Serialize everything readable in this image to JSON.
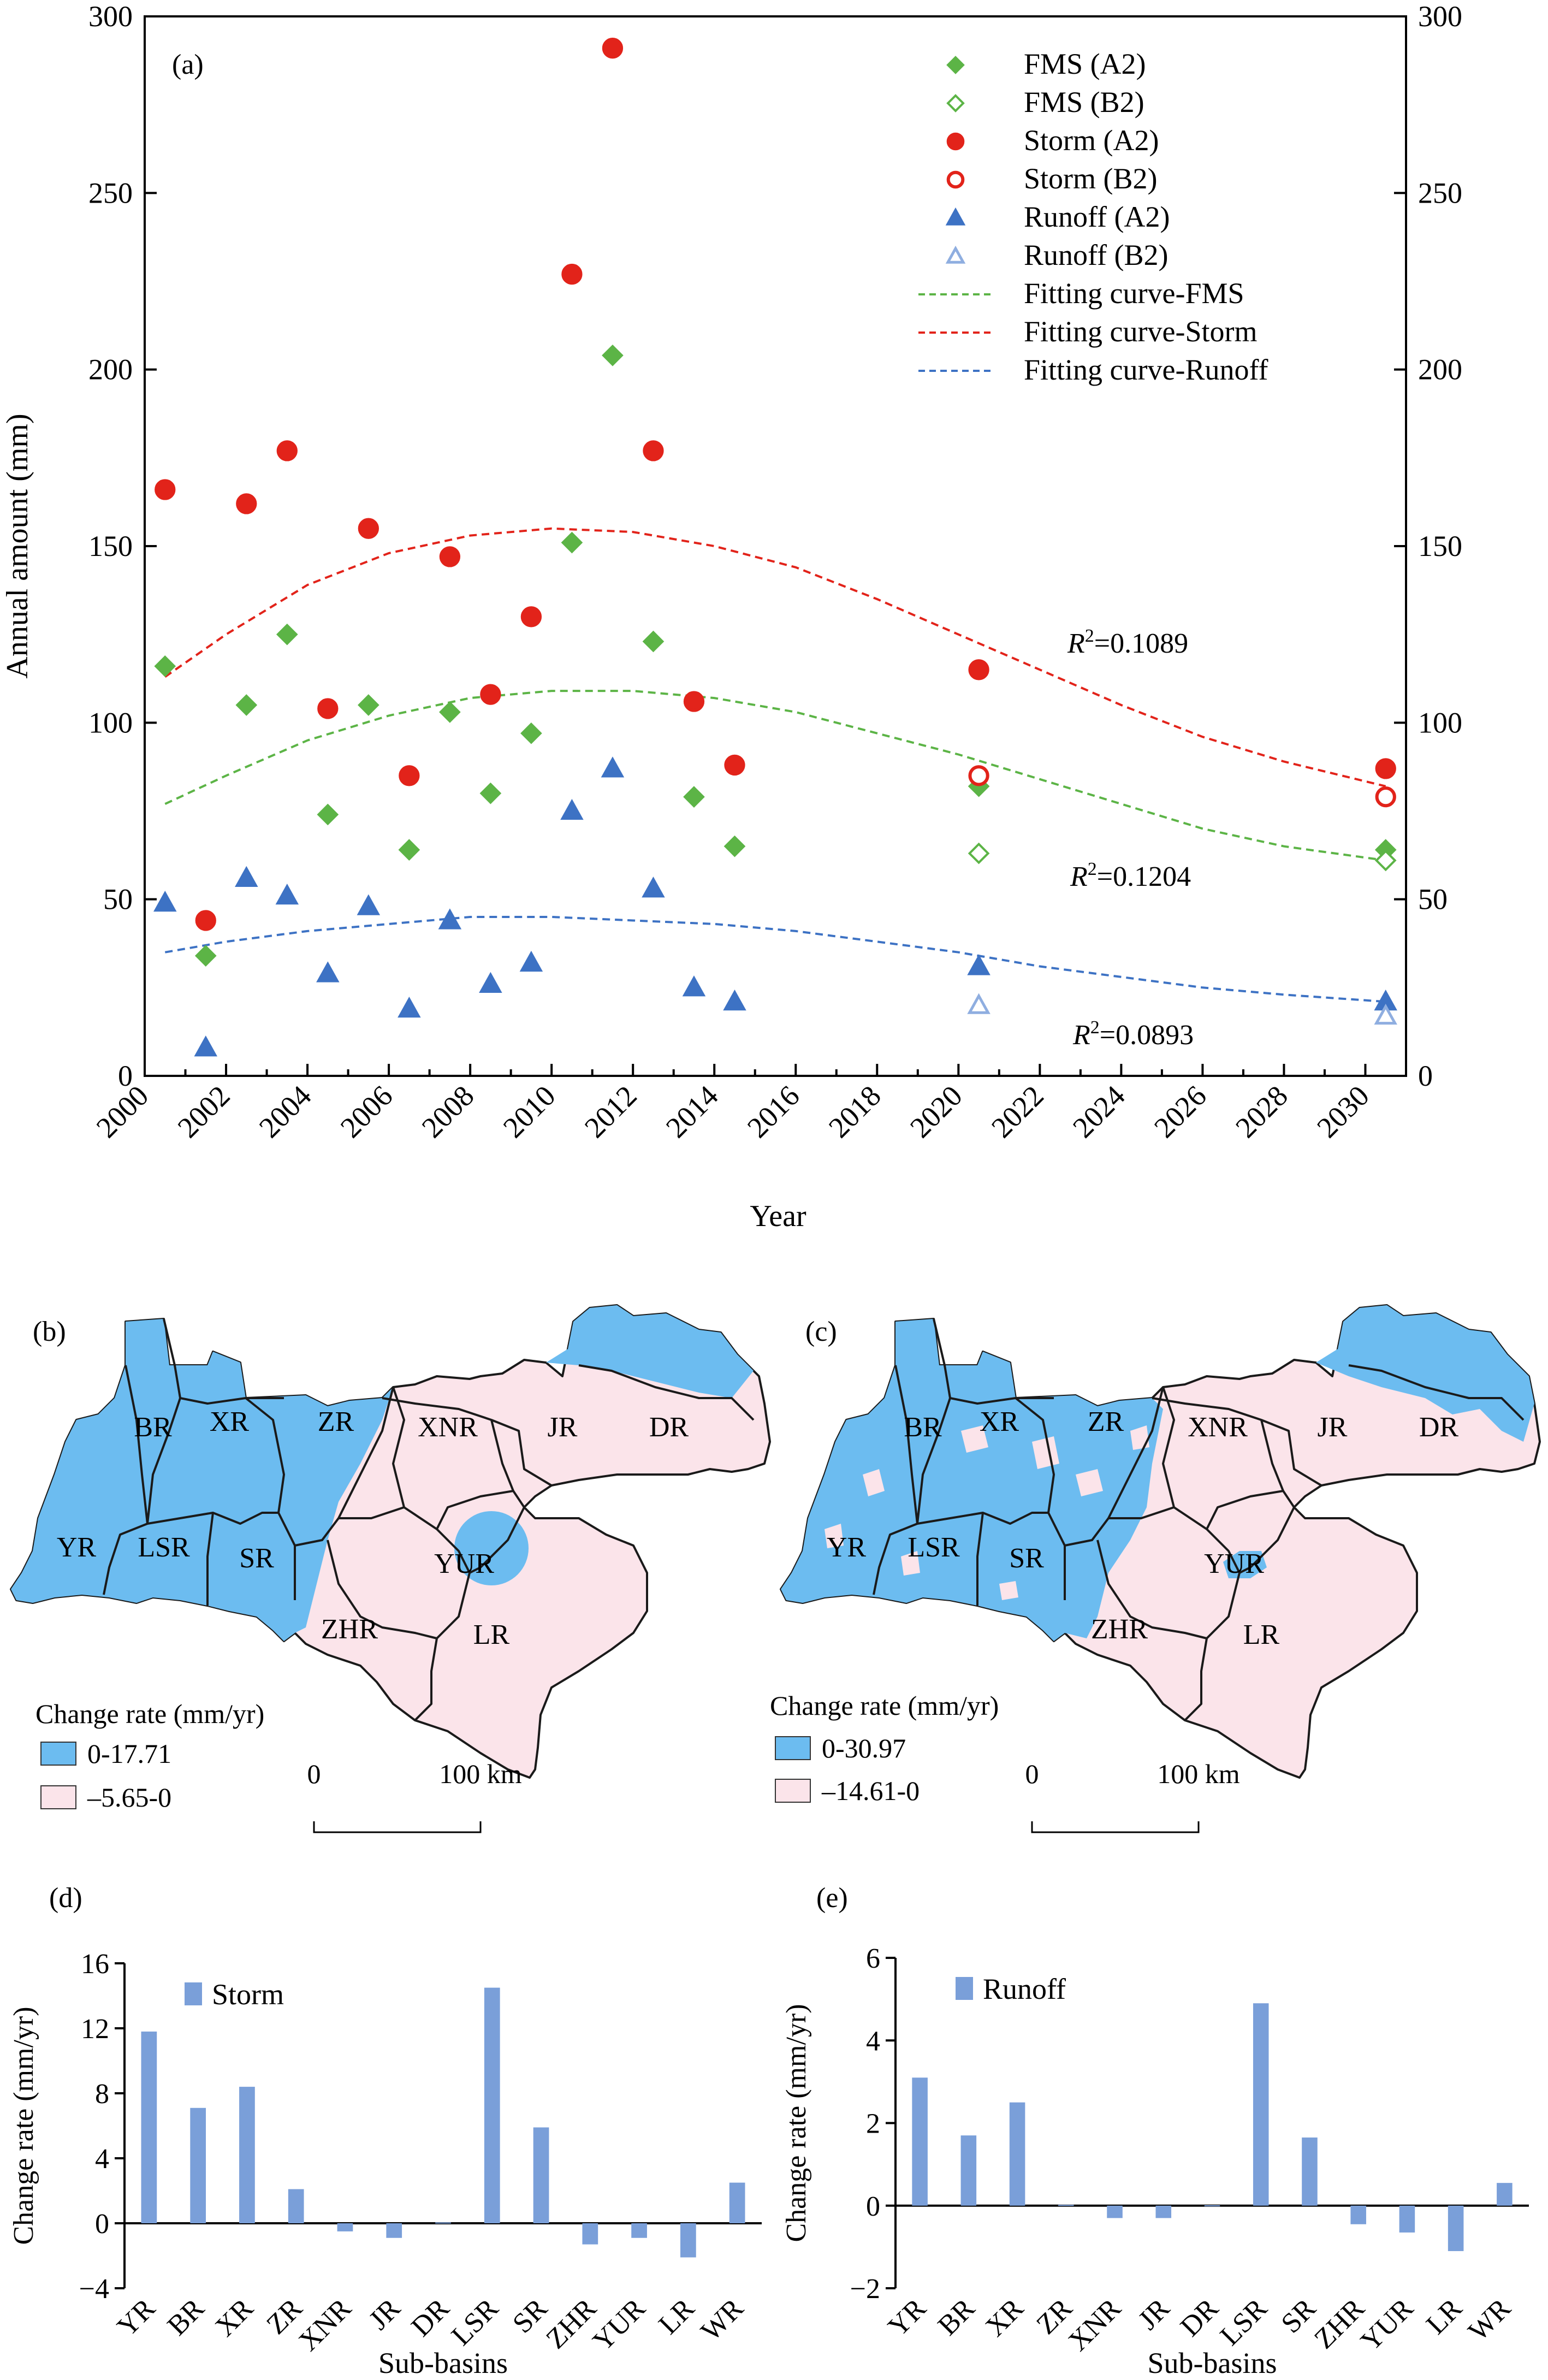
{
  "colors": {
    "fms": "#5cb446",
    "storm": "#e2231a",
    "runoff": "#3d72c4",
    "runoff_light": "#8faee0",
    "bar": "#7a9fd9",
    "map_blue": "#6cbcf0",
    "map_pink": "#fbe4ea",
    "map_border": "#1a1a1a"
  },
  "panel_a": {
    "label": "(a)",
    "ylabel": "Annual amount (mm)",
    "xlabel": "Year",
    "r2": {
      "storm": {
        "prefix": "R",
        "sup": "2",
        "value": "=0.1089"
      },
      "fms": {
        "prefix": "R",
        "sup": "2",
        "value": "=0.1204"
      },
      "runoff": {
        "prefix": "R",
        "sup": "2",
        "value": "=0.0893"
      }
    },
    "legend": [
      {
        "key": "fms_a2",
        "label": "FMS (A2)",
        "marker": "diamond-filled",
        "color": "#5cb446"
      },
      {
        "key": "fms_b2",
        "label": "FMS (B2)",
        "marker": "diamond-open",
        "color": "#5cb446"
      },
      {
        "key": "storm_a2",
        "label": "Storm (A2)",
        "marker": "circle-filled",
        "color": "#e2231a"
      },
      {
        "key": "storm_b2",
        "label": "Storm (B2)",
        "marker": "circle-open",
        "color": "#e2231a"
      },
      {
        "key": "runoff_a2",
        "label": "Runoff (A2)",
        "marker": "triangle-filled",
        "color": "#3d72c4"
      },
      {
        "key": "runoff_b2",
        "label": "Runoff (B2)",
        "marker": "triangle-open",
        "color": "#8faee0"
      },
      {
        "key": "fit_fms",
        "label": "Fitting curve-FMS",
        "marker": "dash",
        "color": "#5cb446"
      },
      {
        "key": "fit_storm",
        "label": "Fitting curve-Storm",
        "marker": "dash",
        "color": "#e2231a"
      },
      {
        "key": "fit_runoff",
        "label": "Fitting curve-Runoff",
        "marker": "dash",
        "color": "#3d72c4"
      }
    ]
  },
  "panel_b": {
    "label": "(b)",
    "legend_title": "Change rate (mm/yr)",
    "legend_items": [
      "0-17.71",
      "–5.65-0"
    ],
    "scale": {
      "zero": "0",
      "end": "100 km"
    },
    "basins": [
      "BR",
      "XR",
      "ZR",
      "XNR",
      "JR",
      "DR",
      "YR",
      "LSR",
      "SR",
      "YUR",
      "ZHR",
      "LR"
    ]
  },
  "panel_c": {
    "label": "(c)",
    "legend_title": "Change rate (mm/yr)",
    "legend_items": [
      "0-30.97",
      "–14.61-0"
    ],
    "scale": {
      "zero": "0",
      "end": "100 km"
    },
    "basins": [
      "BR",
      "XR",
      "ZR",
      "XNR",
      "JR",
      "DR",
      "YR",
      "LSR",
      "SR",
      "YUR",
      "ZHR",
      "LR"
    ]
  },
  "chart_data": [
    {
      "id": "a",
      "type": "scatter",
      "xlabel": "Year",
      "ylabel": "Annual amount (mm)",
      "xlim": [
        2000,
        2031
      ],
      "ylim": [
        0,
        300
      ],
      "xticks": [
        2000,
        2002,
        2004,
        2006,
        2008,
        2010,
        2012,
        2014,
        2016,
        2018,
        2020,
        2022,
        2024,
        2026,
        2028,
        2030
      ],
      "yticks": [
        0,
        50,
        100,
        150,
        200,
        250,
        300
      ],
      "secondary_y": true,
      "series": [
        {
          "name": "FMS (A2)",
          "key": "fms_a2",
          "x": [
            2000.5,
            2001.5,
            2002.5,
            2003.5,
            2004.5,
            2005.5,
            2006.5,
            2007.5,
            2008.5,
            2009.5,
            2010.5,
            2011.5,
            2012.5,
            2013.5,
            2014.5,
            2020.5,
            2030.5
          ],
          "y": [
            116,
            34,
            105,
            125,
            74,
            105,
            64,
            103,
            80,
            97,
            151,
            204,
            123,
            79,
            65,
            82,
            64
          ]
        },
        {
          "name": "FMS (B2)",
          "key": "fms_b2",
          "x": [
            2020.5,
            2030.5
          ],
          "y": [
            63,
            61
          ]
        },
        {
          "name": "Storm (A2)",
          "key": "storm_a2",
          "x": [
            2000.5,
            2001.5,
            2002.5,
            2003.5,
            2004.5,
            2005.5,
            2006.5,
            2007.5,
            2008.5,
            2009.5,
            2010.5,
            2011.5,
            2012.5,
            2013.5,
            2014.5,
            2020.5,
            2030.5
          ],
          "y": [
            166,
            44,
            162,
            177,
            104,
            155,
            85,
            147,
            108,
            130,
            227,
            291,
            177,
            106,
            88,
            115,
            87
          ]
        },
        {
          "name": "Storm (B2)",
          "key": "storm_b2",
          "x": [
            2020.5,
            2030.5
          ],
          "y": [
            85,
            79
          ]
        },
        {
          "name": "Runoff (A2)",
          "key": "runoff_a2",
          "x": [
            2000.5,
            2001.5,
            2002.5,
            2003.5,
            2004.5,
            2005.5,
            2006.5,
            2007.5,
            2008.5,
            2009.5,
            2010.5,
            2011.5,
            2012.5,
            2013.5,
            2014.5,
            2020.5,
            2030.5
          ],
          "y": [
            49,
            8,
            56,
            51,
            29,
            48,
            19,
            44,
            26,
            32,
            75,
            87,
            53,
            25,
            21,
            31,
            21
          ]
        },
        {
          "name": "Runoff (B2)",
          "key": "runoff_b2",
          "x": [
            2020.5,
            2030.5
          ],
          "y": [
            20,
            17
          ]
        },
        {
          "name": "Fitting curve-FMS",
          "key": "fit_fms",
          "type": "line",
          "x": [
            2000.5,
            2002,
            2004,
            2006,
            2008,
            2010,
            2012,
            2014,
            2016,
            2018,
            2020,
            2022,
            2024,
            2026,
            2028,
            2030.5
          ],
          "y": [
            77,
            85,
            95,
            102,
            107,
            109,
            109,
            107,
            103,
            97,
            91,
            84,
            77,
            70,
            65,
            61
          ]
        },
        {
          "name": "Fitting curve-Storm",
          "key": "fit_storm",
          "type": "line",
          "x": [
            2000.5,
            2002,
            2004,
            2006,
            2008,
            2010,
            2012,
            2014,
            2016,
            2018,
            2020,
            2022,
            2024,
            2026,
            2028,
            2030.5
          ],
          "y": [
            113,
            125,
            139,
            148,
            153,
            155,
            154,
            150,
            144,
            135,
            125,
            115,
            105,
            96,
            89,
            82
          ]
        },
        {
          "name": "Fitting curve-Runoff",
          "key": "fit_runoff",
          "type": "line",
          "x": [
            2000.5,
            2002,
            2004,
            2006,
            2008,
            2010,
            2012,
            2014,
            2016,
            2018,
            2020,
            2022,
            2024,
            2026,
            2028,
            2030.5
          ],
          "y": [
            35,
            38,
            41,
            43,
            45,
            45,
            44,
            43,
            41,
            38,
            35,
            31,
            28,
            25,
            23,
            21
          ]
        }
      ]
    },
    {
      "id": "d",
      "type": "bar",
      "label": "(d)",
      "xlabel": "Sub-basins",
      "ylabel": "Change rate (mm/yr)",
      "categories": [
        "YR",
        "BR",
        "XR",
        "ZR",
        "XNR",
        "JR",
        "DR",
        "LSR",
        "SR",
        "ZHR",
        "YUR",
        "LR",
        "WR"
      ],
      "ylim": [
        -4,
        16
      ],
      "yticks": [
        -4,
        0,
        4,
        8,
        12,
        16
      ],
      "series": [
        {
          "name": "Storm",
          "values": [
            11.8,
            7.1,
            8.4,
            2.1,
            -0.5,
            -0.9,
            0.05,
            14.5,
            5.9,
            -1.3,
            -0.9,
            -2.1,
            2.5
          ]
        }
      ]
    },
    {
      "id": "e",
      "type": "bar",
      "label": "(e)",
      "xlabel": "Sub-basins",
      "ylabel": "Change rate (mm/yr)",
      "categories": [
        "YR",
        "BR",
        "XR",
        "ZR",
        "XNR",
        "JR",
        "DR",
        "LSR",
        "SR",
        "ZHR",
        "YUR",
        "LR",
        "WR"
      ],
      "ylim": [
        -2,
        6
      ],
      "yticks": [
        -2,
        0,
        2,
        4,
        6
      ],
      "series": [
        {
          "name": "Runoff",
          "values": [
            3.1,
            1.7,
            2.5,
            0.02,
            -0.3,
            -0.3,
            0.01,
            4.9,
            1.65,
            -0.45,
            -0.65,
            -1.1,
            0.55
          ]
        }
      ]
    }
  ]
}
